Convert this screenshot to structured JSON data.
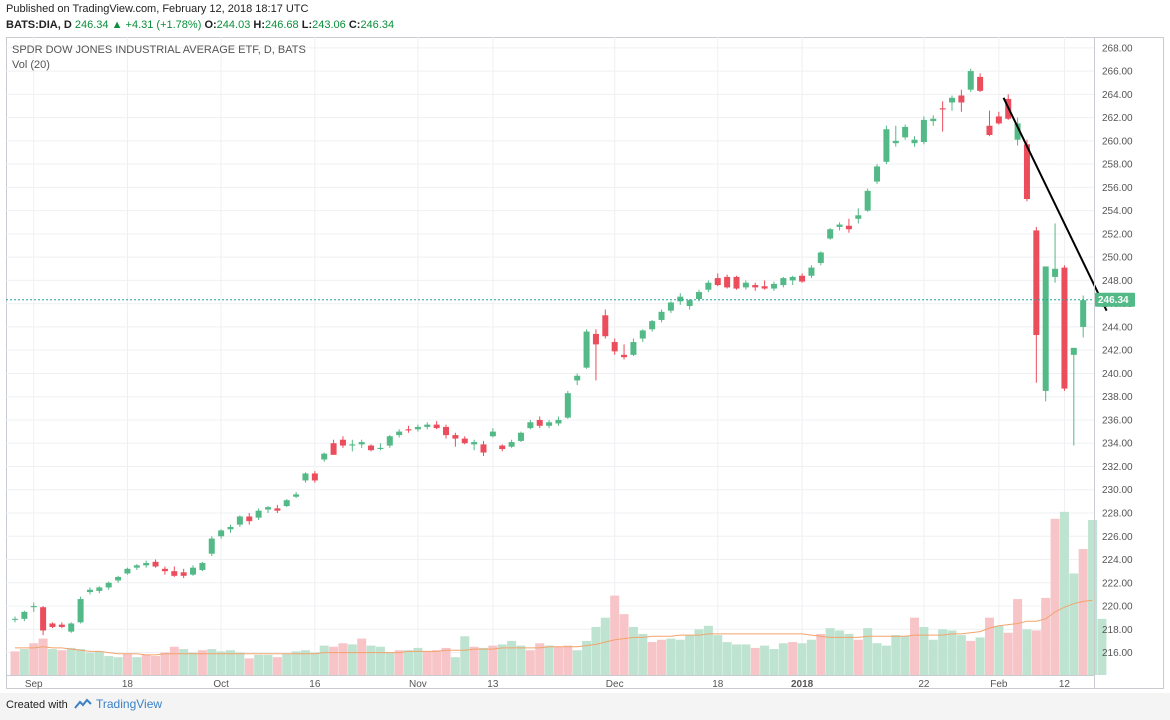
{
  "header": {
    "published": "Published on TradingView.com, February 12, 2018 18:17 UTC",
    "symbol": "BATS:DIA, D",
    "last": "246.34",
    "change": "+4.31 (+1.78%)",
    "o_label": "O:",
    "o": "244.03",
    "h_label": "H:",
    "h": "246.68",
    "l_label": "L:",
    "l": "243.06",
    "c_label": "C:",
    "c": "246.34"
  },
  "footer": {
    "created_with": "Created with",
    "brand": "TradingView"
  },
  "colors": {
    "up": "#53b987",
    "down": "#eb4d5c",
    "vol_up": "#bfe3d1",
    "vol_down": "#f7c4c8",
    "ma": "#f3a36b",
    "grid": "#eef0f3",
    "price_line": "#26a69a",
    "trend": "#000000"
  },
  "chart_data": {
    "type": "candlestick",
    "title": "SPDR DOW JONES INDUSTRIAL AVERAGE ETF, D, BATS",
    "subtitle": "Vol (20)",
    "ylim": [
      214.5,
      268.5
    ],
    "y_ticks": [
      216.0,
      218.0,
      220.0,
      222.0,
      224.0,
      226.0,
      228.0,
      230.0,
      232.0,
      234.0,
      236.0,
      238.0,
      240.0,
      242.0,
      244.0,
      246.0,
      248.0,
      250.0,
      252.0,
      254.0,
      256.0,
      258.0,
      260.0,
      262.0,
      264.0,
      266.0,
      268.0
    ],
    "y_tick_labels": [
      "216.00",
      "218.00",
      "220.00",
      "222.00",
      "224.00",
      "226.00",
      "228.00",
      "230.00",
      "232.00",
      "234.00",
      "236.00",
      "238.00",
      "240.00",
      "242.00",
      "244.00",
      "246.00",
      "248.00",
      "250.00",
      "252.00",
      "254.00",
      "256.00",
      "258.00",
      "260.00",
      "262.00",
      "264.00",
      "266.00",
      "268.00"
    ],
    "x_labels": [
      {
        "label": "Sep",
        "index": 2
      },
      {
        "label": "18",
        "index": 12
      },
      {
        "label": "Oct",
        "index": 22
      },
      {
        "label": "16",
        "index": 32
      },
      {
        "label": "Nov",
        "index": 43
      },
      {
        "label": "13",
        "index": 51
      },
      {
        "label": "Dec",
        "index": 64
      },
      {
        "label": "18",
        "index": 75
      },
      {
        "label": "2018",
        "index": 84
      },
      {
        "label": "22",
        "index": 97
      },
      {
        "label": "Feb",
        "index": 105
      },
      {
        "label": "12",
        "index": 112
      }
    ],
    "last_price": 246.34,
    "last_price_label": "246.34",
    "ohlc": [
      [
        218.9,
        219.1,
        218.6,
        218.9
      ],
      [
        218.9,
        219.6,
        218.7,
        219.5
      ],
      [
        219.9,
        220.3,
        219.5,
        220.0
      ],
      [
        219.9,
        220.0,
        217.5,
        217.9
      ],
      [
        218.5,
        218.6,
        218.1,
        218.2
      ],
      [
        218.4,
        218.6,
        218.1,
        218.2
      ],
      [
        217.8,
        218.6,
        217.7,
        218.5
      ],
      [
        218.6,
        220.8,
        218.5,
        220.6
      ],
      [
        221.2,
        221.6,
        221.0,
        221.4
      ],
      [
        221.3,
        221.7,
        221.1,
        221.6
      ],
      [
        221.6,
        222.1,
        221.4,
        222.0
      ],
      [
        222.2,
        222.6,
        222.0,
        222.5
      ],
      [
        222.8,
        223.3,
        222.7,
        223.2
      ],
      [
        223.3,
        223.6,
        223.1,
        223.5
      ],
      [
        223.5,
        223.9,
        223.3,
        223.7
      ],
      [
        223.8,
        224.0,
        223.3,
        223.4
      ],
      [
        223.2,
        223.4,
        222.7,
        223.0
      ],
      [
        223.0,
        223.4,
        222.5,
        222.6
      ],
      [
        222.9,
        223.2,
        222.4,
        222.6
      ],
      [
        222.7,
        223.5,
        222.6,
        223.3
      ],
      [
        223.1,
        223.8,
        223.0,
        223.7
      ],
      [
        224.5,
        226.0,
        224.3,
        225.8
      ],
      [
        226.0,
        226.6,
        225.8,
        226.5
      ],
      [
        226.6,
        227.0,
        226.3,
        226.8
      ],
      [
        227.0,
        227.8,
        226.8,
        227.7
      ],
      [
        227.7,
        228.0,
        227.0,
        227.3
      ],
      [
        227.6,
        228.4,
        227.4,
        228.2
      ],
      [
        228.3,
        228.6,
        228.0,
        228.5
      ],
      [
        228.4,
        228.7,
        228.0,
        228.2
      ],
      [
        228.6,
        229.2,
        228.5,
        229.1
      ],
      [
        229.4,
        229.8,
        229.3,
        229.6
      ],
      [
        230.8,
        231.5,
        230.6,
        231.4
      ],
      [
        231.4,
        231.6,
        230.6,
        230.8
      ],
      [
        232.6,
        233.2,
        232.4,
        233.1
      ],
      [
        234.0,
        234.3,
        233.4,
        233.0
      ],
      [
        234.3,
        234.6,
        233.6,
        233.8
      ],
      [
        233.8,
        234.3,
        233.3,
        233.9
      ],
      [
        233.9,
        234.3,
        233.6,
        234.1
      ],
      [
        233.8,
        233.9,
        233.3,
        233.4
      ],
      [
        233.5,
        234.0,
        233.4,
        233.6
      ],
      [
        233.8,
        234.7,
        233.6,
        234.6
      ],
      [
        234.7,
        235.2,
        234.5,
        235.0
      ],
      [
        235.2,
        235.5,
        234.9,
        235.1
      ],
      [
        235.2,
        235.6,
        235.0,
        235.4
      ],
      [
        235.4,
        235.8,
        235.2,
        235.6
      ],
      [
        235.6,
        235.9,
        235.2,
        235.3
      ],
      [
        235.4,
        235.6,
        234.4,
        234.7
      ],
      [
        234.7,
        234.9,
        233.7,
        234.4
      ],
      [
        234.4,
        234.6,
        233.9,
        234.0
      ],
      [
        233.9,
        234.3,
        233.4,
        234.1
      ],
      [
        233.9,
        234.2,
        232.9,
        233.2
      ],
      [
        234.6,
        235.3,
        234.5,
        235.0
      ],
      [
        233.8,
        233.9,
        233.3,
        233.5
      ],
      [
        233.7,
        234.3,
        233.6,
        234.1
      ],
      [
        234.2,
        235.0,
        234.1,
        234.9
      ],
      [
        235.3,
        236.0,
        235.2,
        235.8
      ],
      [
        236.0,
        236.3,
        235.3,
        235.5
      ],
      [
        235.5,
        236.0,
        235.3,
        235.8
      ],
      [
        235.7,
        236.3,
        235.5,
        236.0
      ],
      [
        236.2,
        238.5,
        236.1,
        238.3
      ],
      [
        239.4,
        240.0,
        239.0,
        239.8
      ],
      [
        240.5,
        243.8,
        240.4,
        243.6
      ],
      [
        243.4,
        243.8,
        239.4,
        242.5
      ],
      [
        245.0,
        245.5,
        243.0,
        243.2
      ],
      [
        242.7,
        243.0,
        241.6,
        241.9
      ],
      [
        241.6,
        242.5,
        241.2,
        241.4
      ],
      [
        241.6,
        243.0,
        241.5,
        242.7
      ],
      [
        243.0,
        243.8,
        242.7,
        243.7
      ],
      [
        243.8,
        244.6,
        243.6,
        244.5
      ],
      [
        244.6,
        245.5,
        244.4,
        245.3
      ],
      [
        245.4,
        246.2,
        245.2,
        246.1
      ],
      [
        246.2,
        246.9,
        245.9,
        246.6
      ],
      [
        245.8,
        246.4,
        245.5,
        246.3
      ],
      [
        246.4,
        247.2,
        246.2,
        247.0
      ],
      [
        247.2,
        248.0,
        247.0,
        247.8
      ],
      [
        248.2,
        248.6,
        247.5,
        247.6
      ],
      [
        248.3,
        248.5,
        247.3,
        247.4
      ],
      [
        248.3,
        248.4,
        247.2,
        247.3
      ],
      [
        247.4,
        248.0,
        247.2,
        247.8
      ],
      [
        247.6,
        247.8,
        247.1,
        247.4
      ],
      [
        247.5,
        248.0,
        247.2,
        247.3
      ],
      [
        247.3,
        247.9,
        247.1,
        247.7
      ],
      [
        247.6,
        248.3,
        247.4,
        248.2
      ],
      [
        248.0,
        248.4,
        247.6,
        248.3
      ],
      [
        248.4,
        248.6,
        247.8,
        247.9
      ],
      [
        248.4,
        249.3,
        248.2,
        249.1
      ],
      [
        249.5,
        250.5,
        249.3,
        250.4
      ],
      [
        251.6,
        252.5,
        251.5,
        252.4
      ],
      [
        252.6,
        253.0,
        252.3,
        252.8
      ],
      [
        252.7,
        253.3,
        252.1,
        252.4
      ],
      [
        253.3,
        254.2,
        252.9,
        253.6
      ],
      [
        254.0,
        255.9,
        253.9,
        255.7
      ],
      [
        256.5,
        258.0,
        256.3,
        257.8
      ],
      [
        258.2,
        261.3,
        258.0,
        261.0
      ],
      [
        259.8,
        261.3,
        259.5,
        260.0
      ],
      [
        260.3,
        261.4,
        260.1,
        261.2
      ],
      [
        259.8,
        260.4,
        259.5,
        260.1
      ],
      [
        259.9,
        262.1,
        259.7,
        261.8
      ],
      [
        261.7,
        262.2,
        261.3,
        261.9
      ],
      [
        262.8,
        263.4,
        260.8,
        262.7
      ],
      [
        263.3,
        263.9,
        262.6,
        263.7
      ],
      [
        263.9,
        264.4,
        262.5,
        263.3
      ],
      [
        264.4,
        266.2,
        264.2,
        266.0
      ],
      [
        265.5,
        265.8,
        264.2,
        264.3
      ],
      [
        261.3,
        262.6,
        260.4,
        260.5
      ],
      [
        262.1,
        262.5,
        261.4,
        261.5
      ],
      [
        263.6,
        264.0,
        261.8,
        261.9
      ],
      [
        260.1,
        262.0,
        259.6,
        261.5
      ],
      [
        259.7,
        260.1,
        254.8,
        255.0
      ],
      [
        252.3,
        252.6,
        239.2,
        243.3
      ],
      [
        238.5,
        249.2,
        237.6,
        249.2
      ],
      [
        248.3,
        252.9,
        247.8,
        249.0
      ],
      [
        249.1,
        249.3,
        238.5,
        238.7
      ],
      [
        241.6,
        242.2,
        233.8,
        242.2
      ],
      [
        244.0,
        246.7,
        243.1,
        246.3
      ]
    ],
    "volume": [
      [
        216.1,
        0
      ],
      [
        216.3,
        1
      ],
      [
        216.8,
        0
      ],
      [
        217.2,
        0
      ],
      [
        216.3,
        1
      ],
      [
        216.2,
        0
      ],
      [
        216.4,
        1
      ],
      [
        216.3,
        1
      ],
      [
        216.0,
        1
      ],
      [
        216.1,
        1
      ],
      [
        215.7,
        1
      ],
      [
        215.6,
        1
      ],
      [
        215.9,
        0
      ],
      [
        215.6,
        1
      ],
      [
        215.8,
        0
      ],
      [
        215.7,
        0
      ],
      [
        216.0,
        0
      ],
      [
        216.5,
        0
      ],
      [
        216.3,
        1
      ],
      [
        216.0,
        1
      ],
      [
        216.2,
        0
      ],
      [
        216.3,
        1
      ],
      [
        216.1,
        1
      ],
      [
        216.2,
        1
      ],
      [
        216.0,
        1
      ],
      [
        215.5,
        0
      ],
      [
        215.8,
        1
      ],
      [
        215.8,
        1
      ],
      [
        215.6,
        0
      ],
      [
        215.9,
        1
      ],
      [
        216.1,
        1
      ],
      [
        216.2,
        1
      ],
      [
        216.0,
        1
      ],
      [
        216.6,
        1
      ],
      [
        216.5,
        0
      ],
      [
        216.8,
        0
      ],
      [
        216.7,
        1
      ],
      [
        217.2,
        0
      ],
      [
        216.6,
        1
      ],
      [
        216.5,
        1
      ],
      [
        216.0,
        1
      ],
      [
        216.2,
        0
      ],
      [
        216.2,
        1
      ],
      [
        216.4,
        1
      ],
      [
        216.1,
        0
      ],
      [
        216.2,
        0
      ],
      [
        216.4,
        0
      ],
      [
        215.6,
        1
      ],
      [
        217.4,
        1
      ],
      [
        216.5,
        0
      ],
      [
        216.4,
        1
      ],
      [
        216.6,
        0
      ],
      [
        216.7,
        1
      ],
      [
        217.0,
        1
      ],
      [
        216.6,
        1
      ],
      [
        216.2,
        0
      ],
      [
        216.8,
        0
      ],
      [
        216.6,
        1
      ],
      [
        216.5,
        0
      ],
      [
        216.6,
        0
      ],
      [
        216.2,
        1
      ],
      [
        217.0,
        1
      ],
      [
        218.2,
        1
      ],
      [
        219.0,
        1
      ],
      [
        220.9,
        0
      ],
      [
        219.3,
        0
      ],
      [
        218.2,
        1
      ],
      [
        217.6,
        1
      ],
      [
        216.9,
        0
      ],
      [
        217.1,
        0
      ],
      [
        217.2,
        1
      ],
      [
        217.1,
        1
      ],
      [
        217.5,
        1
      ],
      [
        218.0,
        1
      ],
      [
        218.3,
        1
      ],
      [
        217.5,
        1
      ],
      [
        216.9,
        1
      ],
      [
        216.7,
        1
      ],
      [
        216.7,
        1
      ],
      [
        216.4,
        0
      ],
      [
        216.6,
        1
      ],
      [
        216.3,
        1
      ],
      [
        216.8,
        1
      ],
      [
        216.9,
        0
      ],
      [
        216.8,
        1
      ],
      [
        217.1,
        1
      ],
      [
        217.6,
        0
      ],
      [
        218.1,
        1
      ],
      [
        217.9,
        1
      ],
      [
        217.6,
        1
      ],
      [
        217.1,
        0
      ],
      [
        218.1,
        1
      ],
      [
        216.8,
        1
      ],
      [
        216.6,
        1
      ],
      [
        217.5,
        1
      ],
      [
        217.4,
        1
      ],
      [
        219.0,
        0
      ],
      [
        218.2,
        1
      ],
      [
        217.1,
        1
      ],
      [
        218.0,
        1
      ],
      [
        217.9,
        1
      ],
      [
        217.5,
        1
      ],
      [
        217.0,
        0
      ],
      [
        217.3,
        1
      ],
      [
        219.0,
        0
      ],
      [
        218.3,
        1
      ],
      [
        217.7,
        0
      ],
      [
        220.6,
        0
      ],
      [
        218.0,
        1
      ],
      [
        217.9,
        0
      ],
      [
        220.7,
        0
      ],
      [
        227.5,
        0
      ],
      [
        228.1,
        1
      ],
      [
        222.8,
        1
      ],
      [
        224.9,
        0
      ],
      [
        227.4,
        1
      ],
      [
        218.9,
        1
      ]
    ],
    "ma20": [
      216.4,
      216.4,
      216.4,
      216.5,
      216.4,
      216.4,
      216.3,
      216.2,
      216.1,
      216.1,
      216.0,
      215.9,
      215.9,
      215.9,
      215.8,
      215.8,
      215.9,
      215.9,
      215.9,
      215.9,
      215.9,
      215.9,
      215.9,
      215.9,
      215.9,
      215.9,
      215.9,
      215.9,
      215.9,
      215.9,
      215.9,
      215.9,
      215.9,
      216.0,
      216.0,
      216.0,
      216.0,
      216.0,
      216.0,
      216.0,
      216.0,
      216.0,
      216.1,
      216.1,
      216.1,
      216.1,
      216.2,
      216.2,
      216.2,
      216.3,
      216.3,
      216.3,
      216.4,
      216.4,
      216.4,
      216.4,
      216.4,
      216.5,
      216.5,
      216.5,
      216.5,
      216.6,
      216.7,
      216.9,
      217.1,
      217.2,
      217.3,
      217.3,
      217.4,
      217.4,
      217.4,
      217.5,
      217.5,
      217.5,
      217.6,
      217.6,
      217.6,
      217.6,
      217.6,
      217.6,
      217.6,
      217.6,
      217.6,
      217.6,
      217.6,
      217.5,
      217.4,
      217.3,
      217.3,
      217.3,
      217.3,
      217.4,
      217.4,
      217.4,
      217.4,
      217.4,
      217.5,
      217.5,
      217.5,
      217.5,
      217.6,
      217.6,
      217.7,
      217.8,
      218.1,
      218.3,
      218.4,
      218.5,
      218.7,
      218.7,
      218.9,
      219.5,
      219.9,
      220.2,
      220.4,
      220.5
    ],
    "trendline": {
      "start": {
        "index": 105.5,
        "value": 263.7
      },
      "end": {
        "index": 116.5,
        "value": 245.4
      }
    }
  }
}
